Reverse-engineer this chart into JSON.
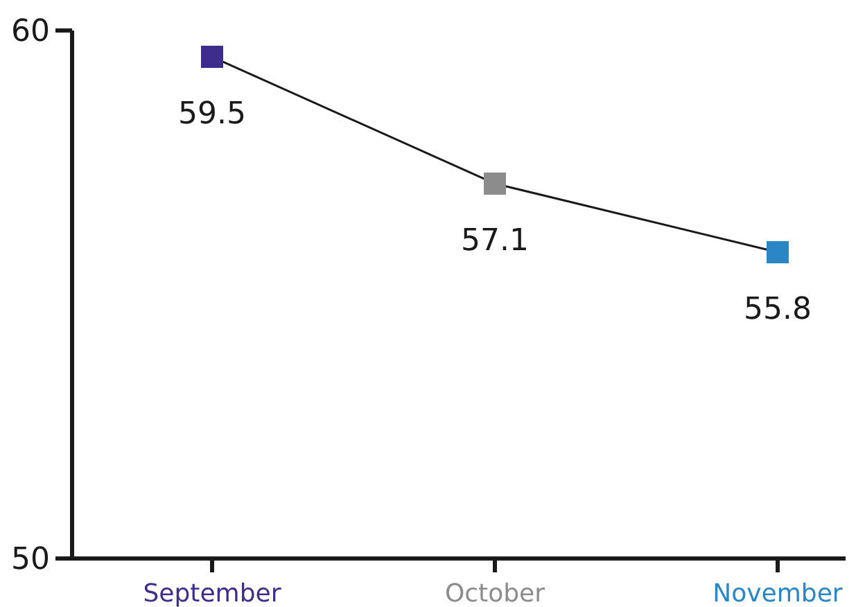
{
  "chart_data": {
    "type": "line",
    "categories": [
      "September",
      "October",
      "November"
    ],
    "values": [
      59.5,
      57.1,
      55.8
    ],
    "color": "#1a1a1a",
    "colors": [
      "#3f2d8c",
      "#8c8c8c",
      "#2b86c5"
    ],
    "ylim": [
      50,
      60
    ],
    "yticks": [
      50,
      60
    ],
    "data_labels": true,
    "marker": "square",
    "grid": false
  }
}
